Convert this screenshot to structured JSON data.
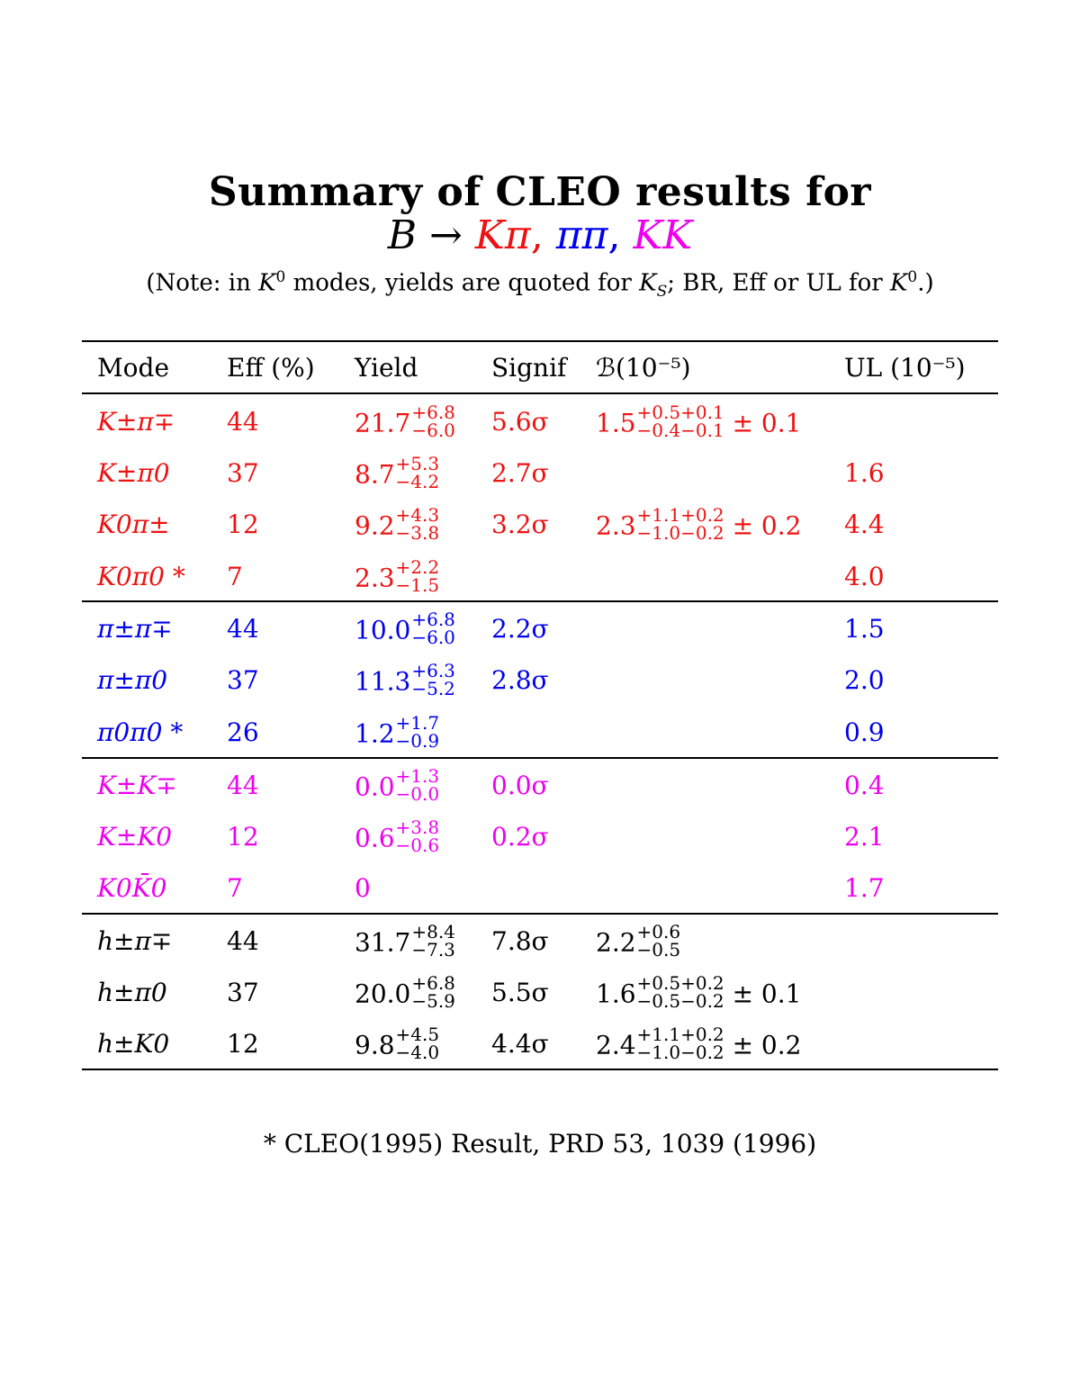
{
  "title": "Summary of CLEO results for",
  "subtitle": {
    "B": "B",
    "arrow": "→",
    "kpi": "Kπ",
    "comma1": ",",
    "pipi": "ππ",
    "comma2": ",",
    "kk": "KK"
  },
  "note": {
    "part1": "(Note: in ",
    "k": "K",
    "k_sup": "0",
    "part2": " modes, yields are quoted for ",
    "ks": "K",
    "ks_sub": "S",
    "part3": "; BR, Eff or UL for ",
    "k2": "K",
    "k2_sup": "0",
    "part4": ".)"
  },
  "columns": {
    "mode": "Mode",
    "eff": "Eff (%)",
    "yield": "Yield",
    "signif": "Signif",
    "br": "ℬ(10⁻⁵)",
    "ul": "UL (10⁻⁵)"
  },
  "colors": {
    "kpi": "#ee1111",
    "pipi": "#0000ee",
    "kk": "#ee00ee",
    "combined": "#000000"
  },
  "rows": [
    {
      "mode": "K±π∓",
      "eff": "44",
      "yield": {
        "v": "21.7",
        "p": "+6.8",
        "m": "−6.0"
      },
      "signif": "5.6σ",
      "br": {
        "v": "1.5",
        "p": "+0.5+0.1",
        "m": "−0.4−0.1",
        "tail": " ± 0.1"
      },
      "ul": ""
    },
    {
      "mode": "K±π0",
      "eff": "37",
      "yield": {
        "v": "8.7",
        "p": "+5.3",
        "m": "−4.2"
      },
      "signif": "2.7σ",
      "br": null,
      "ul": "1.6"
    },
    {
      "mode": "K0π±",
      "eff": "12",
      "yield": {
        "v": "9.2",
        "p": "+4.3",
        "m": "−3.8"
      },
      "signif": "3.2σ",
      "br": {
        "v": "2.3",
        "p": "+1.1+0.2",
        "m": "−1.0−0.2",
        "tail": " ± 0.2"
      },
      "ul": "4.4"
    },
    {
      "mode": "K0π0 *",
      "eff": "7",
      "yield": {
        "v": "2.3",
        "p": "+2.2",
        "m": "−1.5"
      },
      "signif": "",
      "br": null,
      "ul": "4.0"
    },
    {
      "mode": "π±π∓",
      "eff": "44",
      "yield": {
        "v": "10.0",
        "p": "+6.8",
        "m": "−6.0"
      },
      "signif": "2.2σ",
      "br": null,
      "ul": "1.5"
    },
    {
      "mode": "π±π0",
      "eff": "37",
      "yield": {
        "v": "11.3",
        "p": "+6.3",
        "m": "−5.2"
      },
      "signif": "2.8σ",
      "br": null,
      "ul": "2.0"
    },
    {
      "mode": "π0π0 *",
      "eff": "26",
      "yield": {
        "v": "1.2",
        "p": "+1.7",
        "m": "−0.9"
      },
      "signif": "",
      "br": null,
      "ul": "0.9"
    },
    {
      "mode": "K±K∓",
      "eff": "44",
      "yield": {
        "v": "0.0",
        "p": "+1.3",
        "m": "−0.0"
      },
      "signif": "0.0σ",
      "br": null,
      "ul": "0.4"
    },
    {
      "mode": "K±K0",
      "eff": "12",
      "yield": {
        "v": "0.6",
        "p": "+3.8",
        "m": "−0.6"
      },
      "signif": "0.2σ",
      "br": null,
      "ul": "2.1"
    },
    {
      "mode": "K0K̄0",
      "eff": "7",
      "yield": {
        "v": "0",
        "p": "",
        "m": ""
      },
      "signif": "",
      "br": null,
      "ul": "1.7"
    },
    {
      "mode": "h±π∓",
      "eff": "44",
      "yield": {
        "v": "31.7",
        "p": "+8.4",
        "m": "−7.3"
      },
      "signif": "7.8σ",
      "br": {
        "v": "2.2",
        "p": "+0.6",
        "m": "−0.5",
        "tail": ""
      },
      "ul": ""
    },
    {
      "mode": "h±π0",
      "eff": "37",
      "yield": {
        "v": "20.0",
        "p": "+6.8",
        "m": "−5.9"
      },
      "signif": "5.5σ",
      "br": {
        "v": "1.6",
        "p": "+0.5+0.2",
        "m": "−0.5−0.2",
        "tail": " ± 0.1"
      },
      "ul": ""
    },
    {
      "mode": "h±K0",
      "eff": "12",
      "yield": {
        "v": "9.8",
        "p": "+4.5",
        "m": "−4.0"
      },
      "signif": "4.4σ",
      "br": {
        "v": "2.4",
        "p": "+1.1+0.2",
        "m": "−1.0−0.2",
        "tail": " ± 0.2"
      },
      "ul": ""
    }
  ],
  "footnote": "* CLEO(1995) Result, PRD 53, 1039 (1996)"
}
